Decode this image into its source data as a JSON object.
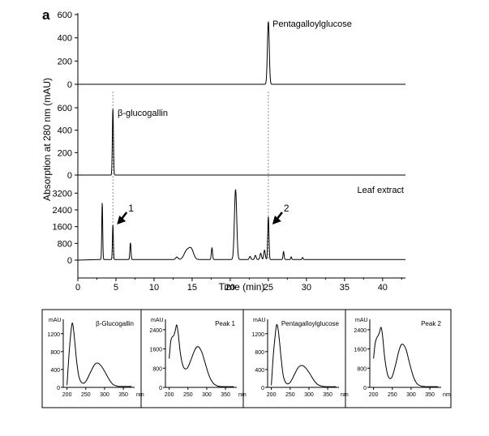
{
  "panel_label": "a",
  "chart_data": [
    {
      "type": "line",
      "title": "",
      "xlabel": "Time (min)",
      "ylabel": "Absorption at 280 nm (mAU)",
      "xlim": [
        0,
        43
      ],
      "xticks": [
        0,
        5,
        10,
        15,
        20,
        25,
        30,
        35,
        40
      ],
      "shared_x_axis": true,
      "reference_lines": [
        {
          "x": 4.6,
          "style": "dashed"
        },
        {
          "x": 25.0,
          "style": "dashed"
        }
      ],
      "traces": [
        {
          "name": "Pentagalloylglucose",
          "ylim": [
            0,
            600
          ],
          "yticks": [
            0,
            200,
            400,
            600
          ],
          "peaks": [
            {
              "t": 25.0,
              "h": 540,
              "w": 0.12
            }
          ]
        },
        {
          "name": "β-glucogallin",
          "ylim": [
            0,
            600
          ],
          "yticks": [
            0,
            200,
            400,
            600
          ],
          "peaks": [
            {
              "t": 4.6,
              "h": 590,
              "w": 0.07
            }
          ]
        },
        {
          "name": "Leaf extract",
          "ylim": [
            0,
            3600
          ],
          "yticks": [
            0,
            800,
            1600,
            2400,
            3200
          ],
          "peaks": [
            {
              "t": 3.2,
              "h": 2700,
              "w": 0.06
            },
            {
              "t": 4.6,
              "h": 1650,
              "w": 0.06
            },
            {
              "t": 6.9,
              "h": 800,
              "w": 0.07
            },
            {
              "t": 13.0,
              "h": 120,
              "w": 0.15
            },
            {
              "t": 14.3,
              "h": 420,
              "w": 0.35
            },
            {
              "t": 14.9,
              "h": 450,
              "w": 0.3
            },
            {
              "t": 17.6,
              "h": 550,
              "w": 0.08
            },
            {
              "t": 20.7,
              "h": 3350,
              "w": 0.15
            },
            {
              "t": 22.6,
              "h": 150,
              "w": 0.1
            },
            {
              "t": 23.3,
              "h": 200,
              "w": 0.1
            },
            {
              "t": 24.0,
              "h": 300,
              "w": 0.1
            },
            {
              "t": 24.5,
              "h": 450,
              "w": 0.1
            },
            {
              "t": 25.0,
              "h": 2050,
              "w": 0.08
            },
            {
              "t": 27.0,
              "h": 380,
              "w": 0.07
            },
            {
              "t": 28.0,
              "h": 130,
              "w": 0.06
            },
            {
              "t": 29.5,
              "h": 100,
              "w": 0.06
            }
          ],
          "baseline": 30,
          "annotations": [
            {
              "label": "1",
              "t": 4.6
            },
            {
              "label": "2",
              "t": 25.0
            }
          ]
        }
      ]
    },
    {
      "type": "line",
      "title": "β-Glucogallin",
      "ylabel": "mAU",
      "xlabel": "nm",
      "xlim": [
        190,
        380
      ],
      "ylim": [
        0,
        1450
      ],
      "xticks": [
        200,
        250,
        300,
        350
      ],
      "yticks": [
        0,
        400,
        800,
        1200
      ],
      "curve": [
        [
          200,
          50
        ],
        [
          205,
          700
        ],
        [
          210,
          1200
        ],
        [
          214,
          1440
        ],
        [
          218,
          1250
        ],
        [
          222,
          900
        ],
        [
          226,
          560
        ],
        [
          232,
          230
        ],
        [
          240,
          100
        ],
        [
          250,
          130
        ],
        [
          262,
          330
        ],
        [
          272,
          490
        ],
        [
          280,
          545
        ],
        [
          290,
          490
        ],
        [
          300,
          360
        ],
        [
          312,
          180
        ],
        [
          322,
          70
        ],
        [
          335,
          25
        ],
        [
          350,
          20
        ],
        [
          372,
          20
        ]
      ]
    },
    {
      "type": "line",
      "title": "Peak 1",
      "ylabel": "mAU",
      "xlabel": "nm",
      "xlim": [
        190,
        380
      ],
      "ylim": [
        0,
        2700
      ],
      "xticks": [
        200,
        250,
        300,
        350
      ],
      "yticks": [
        0,
        800,
        1600,
        2400
      ],
      "curve": [
        [
          200,
          1200
        ],
        [
          204,
          1900
        ],
        [
          208,
          2100
        ],
        [
          212,
          2150
        ],
        [
          216,
          2350
        ],
        [
          220,
          2600
        ],
        [
          224,
          2250
        ],
        [
          230,
          1400
        ],
        [
          238,
          850
        ],
        [
          248,
          800
        ],
        [
          258,
          1150
        ],
        [
          268,
          1550
        ],
        [
          276,
          1700
        ],
        [
          286,
          1500
        ],
        [
          296,
          1000
        ],
        [
          306,
          500
        ],
        [
          316,
          200
        ],
        [
          328,
          60
        ],
        [
          345,
          30
        ],
        [
          372,
          30
        ]
      ]
    },
    {
      "type": "line",
      "title": "Pentagalloylglucose",
      "ylabel": "mAU",
      "xlabel": "nm",
      "xlim": [
        190,
        380
      ],
      "ylim": [
        0,
        1450
      ],
      "xticks": [
        200,
        250,
        300,
        350
      ],
      "yticks": [
        0,
        400,
        800,
        1200
      ],
      "curve": [
        [
          200,
          50
        ],
        [
          205,
          700
        ],
        [
          210,
          1150
        ],
        [
          214,
          1400
        ],
        [
          218,
          1300
        ],
        [
          222,
          1000
        ],
        [
          226,
          650
        ],
        [
          232,
          250
        ],
        [
          240,
          90
        ],
        [
          250,
          110
        ],
        [
          262,
          300
        ],
        [
          272,
          450
        ],
        [
          282,
          490
        ],
        [
          292,
          430
        ],
        [
          302,
          310
        ],
        [
          314,
          150
        ],
        [
          324,
          60
        ],
        [
          338,
          20
        ],
        [
          352,
          15
        ],
        [
          372,
          15
        ]
      ]
    },
    {
      "type": "line",
      "title": "Peak 2",
      "ylabel": "mAU",
      "xlabel": "nm",
      "xlim": [
        190,
        380
      ],
      "ylim": [
        0,
        2700
      ],
      "xticks": [
        200,
        250,
        300,
        350
      ],
      "yticks": [
        0,
        800,
        1600,
        2400
      ],
      "curve": [
        [
          200,
          1200
        ],
        [
          204,
          1800
        ],
        [
          208,
          2050
        ],
        [
          212,
          2150
        ],
        [
          216,
          2300
        ],
        [
          220,
          2500
        ],
        [
          224,
          2150
        ],
        [
          230,
          1200
        ],
        [
          238,
          500
        ],
        [
          248,
          400
        ],
        [
          258,
          900
        ],
        [
          268,
          1550
        ],
        [
          276,
          1800
        ],
        [
          286,
          1600
        ],
        [
          296,
          1000
        ],
        [
          306,
          450
        ],
        [
          316,
          150
        ],
        [
          328,
          50
        ],
        [
          345,
          30
        ],
        [
          372,
          30
        ]
      ]
    }
  ]
}
